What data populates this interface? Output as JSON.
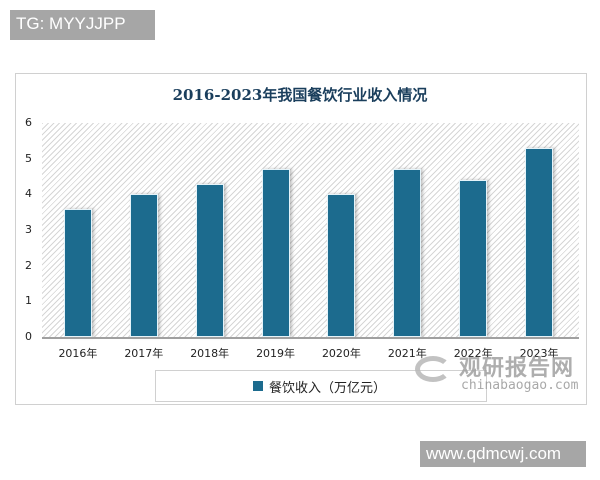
{
  "overlays": {
    "top_tag": "TG: MYYJJPP",
    "bottom_tag": "www.qdmcwj.com"
  },
  "watermark": {
    "cn": "观研报告网",
    "en": "chinabaogao.com"
  },
  "colors": {
    "bar": "#1c6b8e",
    "title": "#1a3e5c",
    "tag_bg": "#a6a6a6"
  },
  "chart_data": {
    "type": "bar",
    "title": "2016-2023年我国餐饮行业收入情况",
    "categories": [
      "2016年",
      "2017年",
      "2018年",
      "2019年",
      "2020年",
      "2021年",
      "2022年",
      "2023年"
    ],
    "series": [
      {
        "name": "餐饮收入（万亿元）",
        "values": [
          3.6,
          4.0,
          4.3,
          4.7,
          4.0,
          4.7,
          4.4,
          5.3
        ]
      }
    ],
    "xlabel": "",
    "ylabel": "",
    "ylim": [
      0,
      6
    ],
    "yticks": [
      "0",
      "1",
      "2",
      "3",
      "4",
      "5",
      "6"
    ],
    "grid": false,
    "legend_position": "bottom"
  }
}
